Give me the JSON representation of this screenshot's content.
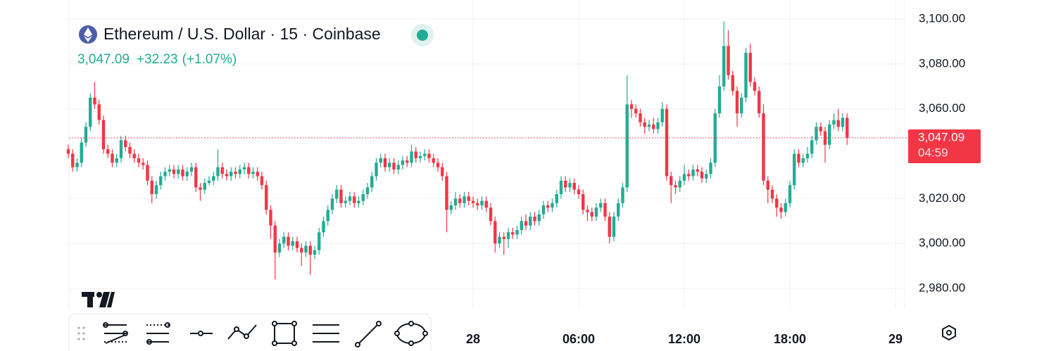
{
  "header": {
    "symbol": "Ethereum / U.S. Dollar · 15 · Coinbase",
    "price": "3,047.09",
    "change": "+32.23",
    "change_pct": "(+1.07%)"
  },
  "chart_data": {
    "type": "candlestick",
    "up_color": "#22ab94",
    "down_color": "#f23645",
    "grid": true,
    "ylim": [
      2970.6,
      3108.5
    ],
    "yticks": [
      {
        "value": 2980,
        "label": "2,980.00"
      },
      {
        "value": 3000,
        "label": "3,000.00"
      },
      {
        "value": 3020,
        "label": "3,020.00"
      },
      {
        "value": 3060,
        "label": "3,060.00"
      },
      {
        "value": 3080,
        "label": "3,080.00"
      },
      {
        "value": 3100,
        "label": "3,100.00"
      }
    ],
    "last_price": {
      "value": 3047.09,
      "label": "3,047.09"
    },
    "countdown": "04:59",
    "categories": [
      null,
      null,
      null,
      null,
      null,
      null,
      null,
      null,
      null,
      null,
      null,
      null,
      null,
      null,
      null,
      null,
      null,
      null,
      null,
      null,
      null,
      null,
      null,
      null,
      null,
      null,
      null,
      null,
      null,
      null,
      null,
      null,
      null,
      null,
      null,
      null,
      null,
      null,
      null,
      null,
      null,
      null,
      null,
      null,
      null,
      null,
      null,
      null,
      null,
      null,
      null,
      null,
      null,
      null,
      null,
      null,
      null,
      null,
      null,
      null,
      null,
      null,
      null,
      null,
      null,
      null,
      null,
      null,
      null,
      null,
      null,
      null,
      null,
      null,
      null,
      null,
      null,
      null,
      null,
      null,
      null,
      null,
      null,
      null,
      null,
      null,
      null,
      null,
      null,
      null,
      null,
      null,
      "28",
      null,
      null,
      null,
      null,
      null,
      null,
      null,
      null,
      null,
      null,
      null,
      null,
      null,
      null,
      null,
      null,
      null,
      null,
      null,
      null,
      null,
      null,
      null,
      "06:00",
      null,
      null,
      null,
      null,
      null,
      null,
      null,
      null,
      null,
      null,
      null,
      null,
      null,
      null,
      null,
      null,
      null,
      null,
      null,
      null,
      null,
      null,
      null,
      "12:00",
      null,
      null,
      null,
      null,
      null,
      null,
      null,
      null,
      null,
      null,
      null,
      null,
      null,
      null,
      null,
      null,
      null,
      null,
      null,
      null,
      null,
      null,
      null,
      "18:00",
      null,
      null,
      null,
      null,
      null,
      null,
      null,
      null,
      null,
      null,
      null,
      null,
      null,
      null,
      null,
      null,
      null,
      null,
      null,
      null,
      null,
      null,
      null,
      "29"
    ],
    "open": [
      3042,
      3040,
      3034,
      3036,
      3045,
      3052,
      3065,
      3062,
      3055,
      3042,
      3040,
      3036,
      3038,
      3046,
      3043,
      3040,
      3038,
      3036,
      3035,
      3028,
      3022,
      3026,
      3030,
      3032,
      3033,
      3031,
      3033,
      3030,
      3032,
      3034,
      3025,
      3024,
      3027,
      3028,
      3030,
      3034,
      3031,
      3030,
      3032,
      3031,
      3033,
      3034,
      3031,
      3032,
      3030,
      3026,
      3015,
      3008,
      2996,
      3000,
      3003,
      2999,
      3001,
      2998,
      2996,
      2999,
      2995,
      2997,
      3005,
      3010,
      3015,
      3020,
      3024,
      3018,
      3019,
      3021,
      3018,
      3019,
      3022,
      3025,
      3030,
      3036,
      3038,
      3034,
      3036,
      3033,
      3035,
      3037,
      3036,
      3041,
      3038,
      3039,
      3040,
      3038,
      3036,
      3034,
      3030,
      3015,
      3017,
      3020,
      3018,
      3021,
      3019,
      3018,
      3017,
      3019,
      3016,
      3010,
      3000,
      3003,
      3002,
      3005,
      3004,
      3006,
      3010,
      3008,
      3012,
      3010,
      3013,
      3017,
      3016,
      3018,
      3022,
      3028,
      3025,
      3027,
      3024,
      3022,
      3015,
      3014,
      3012,
      3016,
      3018,
      3012,
      3003,
      3012,
      3018,
      3025,
      3062,
      3060,
      3058,
      3054,
      3052,
      3053,
      3051,
      3054,
      3060,
      3030,
      3026,
      3025,
      3028,
      3031,
      3030,
      3033,
      3032,
      3029,
      3031,
      3036,
      3058,
      3070,
      3088,
      3075,
      3068,
      3058,
      3065,
      3085,
      3072,
      3068,
      3058,
      3028,
      3024,
      3020,
      3016,
      3014,
      3018,
      3026,
      3040,
      3036,
      3038,
      3040,
      3046,
      3052,
      3050,
      3044,
      3053,
      3055,
      3052,
      3056,
      null,
      null,
      null,
      null,
      null,
      null,
      null,
      null,
      null,
      null,
      null
    ],
    "high": [
      3044,
      3042,
      3038,
      3047,
      3054,
      3067,
      3072,
      3064,
      3057,
      3044,
      3042,
      3040,
      3048,
      3048,
      3045,
      3042,
      3040,
      3038,
      3037,
      3030,
      3028,
      3032,
      3034,
      3035,
      3035,
      3035,
      3035,
      3034,
      3036,
      3036,
      3027,
      3029,
      3030,
      3032,
      3042,
      3036,
      3033,
      3034,
      3034,
      3035,
      3036,
      3036,
      3034,
      3034,
      3032,
      3028,
      3017,
      3010,
      3002,
      3005,
      3005,
      3003,
      3003,
      3000,
      3001,
      3001,
      2999,
      3007,
      3012,
      3017,
      3022,
      3026,
      3026,
      3021,
      3023,
      3023,
      3021,
      3024,
      3027,
      3032,
      3038,
      3040,
      3040,
      3038,
      3038,
      3037,
      3039,
      3039,
      3044,
      3043,
      3041,
      3042,
      3042,
      3040,
      3038,
      3036,
      3032,
      3019,
      3023,
      3022,
      3023,
      3023,
      3021,
      3020,
      3021,
      3021,
      3018,
      3012,
      3005,
      3005,
      3007,
      3007,
      3008,
      3012,
      3013,
      3014,
      3014,
      3015,
      3019,
      3019,
      3020,
      3024,
      3030,
      3030,
      3029,
      3029,
      3026,
      3024,
      3017,
      3016,
      3018,
      3020,
      3020,
      3014,
      3014,
      3020,
      3027,
      3075,
      3064,
      3062,
      3060,
      3056,
      3055,
      3056,
      3056,
      3063,
      3062,
      3032,
      3028,
      3030,
      3035,
      3033,
      3035,
      3035,
      3034,
      3033,
      3038,
      3060,
      3075,
      3099,
      3095,
      3077,
      3070,
      3067,
      3087,
      3089,
      3074,
      3070,
      3062,
      3030,
      3026,
      3022,
      3018,
      3020,
      3028,
      3042,
      3042,
      3040,
      3043,
      3048,
      3054,
      3054,
      3052,
      3055,
      3058,
      3060,
      3058,
      3058,
      null,
      null,
      null,
      null,
      null,
      null,
      null,
      null,
      null,
      null,
      null
    ],
    "low": [
      3038,
      3032,
      3032,
      3034,
      3043,
      3050,
      3060,
      3053,
      3040,
      3038,
      3034,
      3034,
      3036,
      3041,
      3038,
      3036,
      3034,
      3033,
      3026,
      3018,
      3020,
      3024,
      3028,
      3030,
      3029,
      3029,
      3028,
      3028,
      3030,
      3023,
      3019,
      3022,
      3026,
      3026,
      3028,
      3029,
      3028,
      3028,
      3029,
      3029,
      3031,
      3029,
      3029,
      3028,
      3024,
      3013,
      3002,
      2984,
      2994,
      2998,
      2997,
      2997,
      2996,
      2990,
      2994,
      2986,
      2993,
      2995,
      3003,
      3008,
      3013,
      3018,
      3016,
      3016,
      3017,
      3016,
      3016,
      3017,
      3020,
      3023,
      3028,
      3034,
      3032,
      3032,
      3031,
      3031,
      3033,
      3034,
      3034,
      3036,
      3036,
      3037,
      3036,
      3034,
      3032,
      3028,
      3005,
      3013,
      3015,
      3016,
      3016,
      3017,
      3016,
      3015,
      3015,
      3014,
      3008,
      2996,
      2998,
      2995,
      2998,
      3002,
      3002,
      3004,
      3006,
      3006,
      3008,
      3008,
      3011,
      3014,
      3014,
      3016,
      3020,
      3023,
      3023,
      3022,
      3020,
      3013,
      3010,
      3010,
      3010,
      3014,
      3010,
      3000,
      3001,
      3010,
      3016,
      3023,
      3056,
      3056,
      3052,
      3049,
      3050,
      3049,
      3049,
      3052,
      3028,
      3018,
      3022,
      3023,
      3026,
      3028,
      3028,
      3030,
      3027,
      3027,
      3029,
      3034,
      3056,
      3068,
      3073,
      3066,
      3052,
      3056,
      3063,
      3070,
      3066,
      3056,
      3026,
      3018,
      3018,
      3012,
      3011,
      3012,
      3016,
      3024,
      3034,
      3034,
      3036,
      3038,
      3044,
      3048,
      3036,
      3042,
      3051,
      3050,
      3050,
      3044,
      null,
      null,
      null,
      null,
      null,
      null,
      null,
      null,
      null,
      null,
      null
    ],
    "close": [
      3040,
      3034,
      3036,
      3045,
      3052,
      3065,
      3062,
      3055,
      3042,
      3040,
      3036,
      3038,
      3046,
      3043,
      3040,
      3038,
      3036,
      3035,
      3028,
      3022,
      3026,
      3030,
      3032,
      3033,
      3031,
      3033,
      3030,
      3032,
      3034,
      3025,
      3024,
      3027,
      3028,
      3030,
      3034,
      3031,
      3030,
      3032,
      3031,
      3033,
      3034,
      3031,
      3032,
      3030,
      3026,
      3015,
      3008,
      2996,
      3000,
      3003,
      2999,
      3001,
      2998,
      2996,
      2999,
      2995,
      2997,
      3005,
      3010,
      3015,
      3020,
      3024,
      3018,
      3019,
      3021,
      3018,
      3019,
      3022,
      3025,
      3030,
      3036,
      3038,
      3034,
      3036,
      3033,
      3035,
      3037,
      3036,
      3041,
      3038,
      3039,
      3040,
      3038,
      3036,
      3034,
      3030,
      3015,
      3017,
      3020,
      3018,
      3021,
      3019,
      3018,
      3017,
      3019,
      3016,
      3010,
      3000,
      3003,
      3002,
      3005,
      3004,
      3006,
      3010,
      3008,
      3012,
      3010,
      3013,
      3017,
      3016,
      3018,
      3022,
      3028,
      3025,
      3027,
      3024,
      3022,
      3015,
      3014,
      3012,
      3016,
      3018,
      3012,
      3003,
      3012,
      3018,
      3025,
      3062,
      3060,
      3058,
      3054,
      3052,
      3053,
      3051,
      3054,
      3060,
      3030,
      3026,
      3025,
      3028,
      3031,
      3030,
      3033,
      3032,
      3029,
      3031,
      3036,
      3058,
      3070,
      3088,
      3075,
      3068,
      3058,
      3065,
      3085,
      3072,
      3068,
      3058,
      3028,
      3024,
      3020,
      3016,
      3014,
      3018,
      3026,
      3040,
      3036,
      3038,
      3040,
      3046,
      3052,
      3050,
      3044,
      3053,
      3055,
      3052,
      3056,
      3047.09,
      null,
      null,
      null,
      null,
      null,
      null,
      null,
      null,
      null,
      null,
      null
    ]
  }
}
